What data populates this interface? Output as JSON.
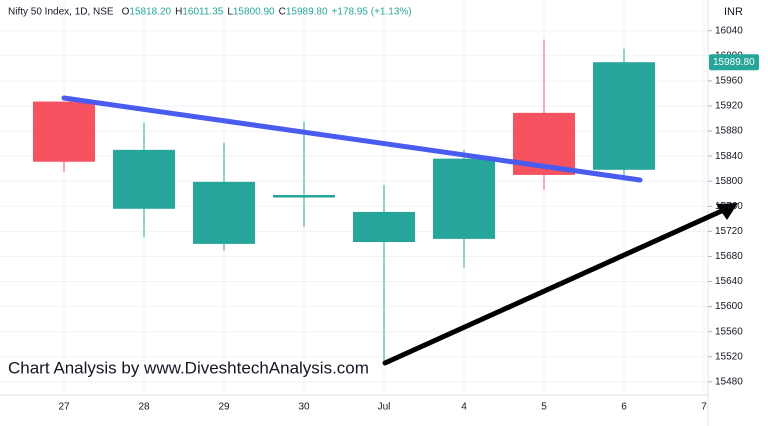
{
  "chart_data": {
    "type": "candlestick",
    "header": {
      "symbol": "Nifty 50 Index, 1D, NSE",
      "fields": [
        {
          "label": "O",
          "value": "15818.20"
        },
        {
          "label": "H",
          "value": "16011.35"
        },
        {
          "label": "L",
          "value": "15800.90"
        },
        {
          "label": "C",
          "value": "15989.80"
        }
      ],
      "change": "+178.95 (+1.13%)"
    },
    "currency": "INR",
    "watermark": "Chart Analysis by www.DiveshtechAnalysis.com",
    "categories": [
      "27",
      "28",
      "29",
      "30",
      "Jul",
      "4",
      "5",
      "6",
      "7"
    ],
    "open": [
      15927,
      15756,
      15700,
      15774,
      15703,
      15708,
      15909,
      15818.2,
      null
    ],
    "high": [
      15927,
      15893,
      15861,
      15895,
      15794,
      15850,
      16026,
      16011.35,
      null
    ],
    "low": [
      15815,
      15711,
      15689,
      15727,
      15507,
      15662,
      15786,
      15800.9,
      null
    ],
    "close": [
      15831,
      15850,
      15799,
      15778,
      15751,
      15836,
      15810,
      15989.8,
      null
    ],
    "last_price_label": "15989.80",
    "up_color": "#26a69a",
    "down_color": "#f7525f",
    "ylim": [
      15459,
      16089
    ],
    "yticks": [
      15480,
      15520,
      15560,
      15600,
      15640,
      15680,
      15720,
      15760,
      15800,
      15840,
      15880,
      15920,
      15960,
      16000,
      16040
    ],
    "grid": true
  }
}
